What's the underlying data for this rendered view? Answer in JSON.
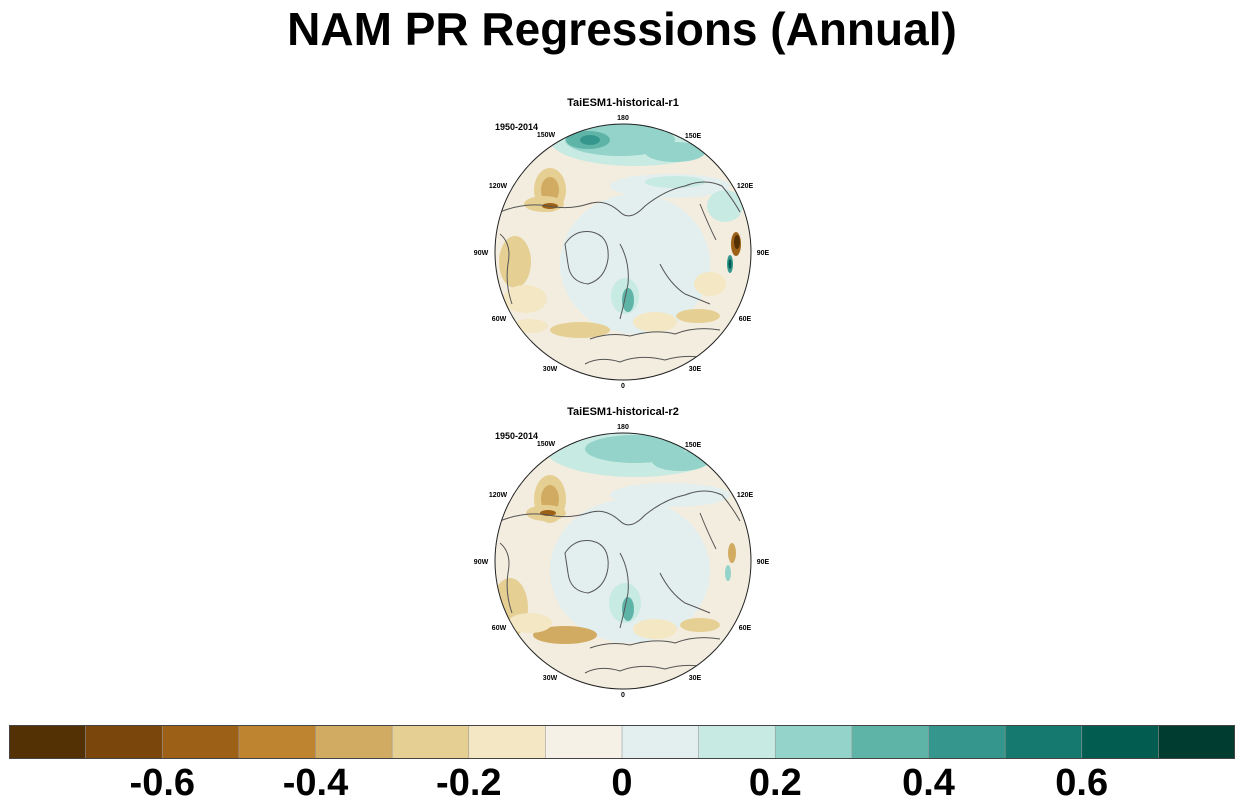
{
  "title": "NAM PR Regressions (Annual)",
  "panels": [
    {
      "title": "TaiESM1-historical-r1",
      "period": "1950-2014"
    },
    {
      "title": "TaiESM1-historical-r2",
      "period": "1950-2014"
    }
  ],
  "longitude_labels": [
    "180",
    "150E",
    "120E",
    "90E",
    "60E",
    "30E",
    "0",
    "30W",
    "60W",
    "90W",
    "120W",
    "150W"
  ],
  "colorbar": {
    "colors": [
      "#543005",
      "#7a460b",
      "#9c6116",
      "#bf842f",
      "#d2ab62",
      "#e6cf93",
      "#f4e7c4",
      "#f5f1e6",
      "#e3efef",
      "#c7eae3",
      "#93d3c9",
      "#5fb4a8",
      "#34968c",
      "#16796f",
      "#025c4f",
      "#003c30"
    ],
    "tick_labels": [
      "-0.6",
      "-0.4",
      "-0.2",
      "0",
      "0.2",
      "0.4",
      "0.6"
    ],
    "tick_values": [
      -0.6,
      -0.4,
      -0.2,
      0,
      0.2,
      0.4,
      0.6
    ],
    "range": [
      -0.8,
      0.8
    ]
  }
}
